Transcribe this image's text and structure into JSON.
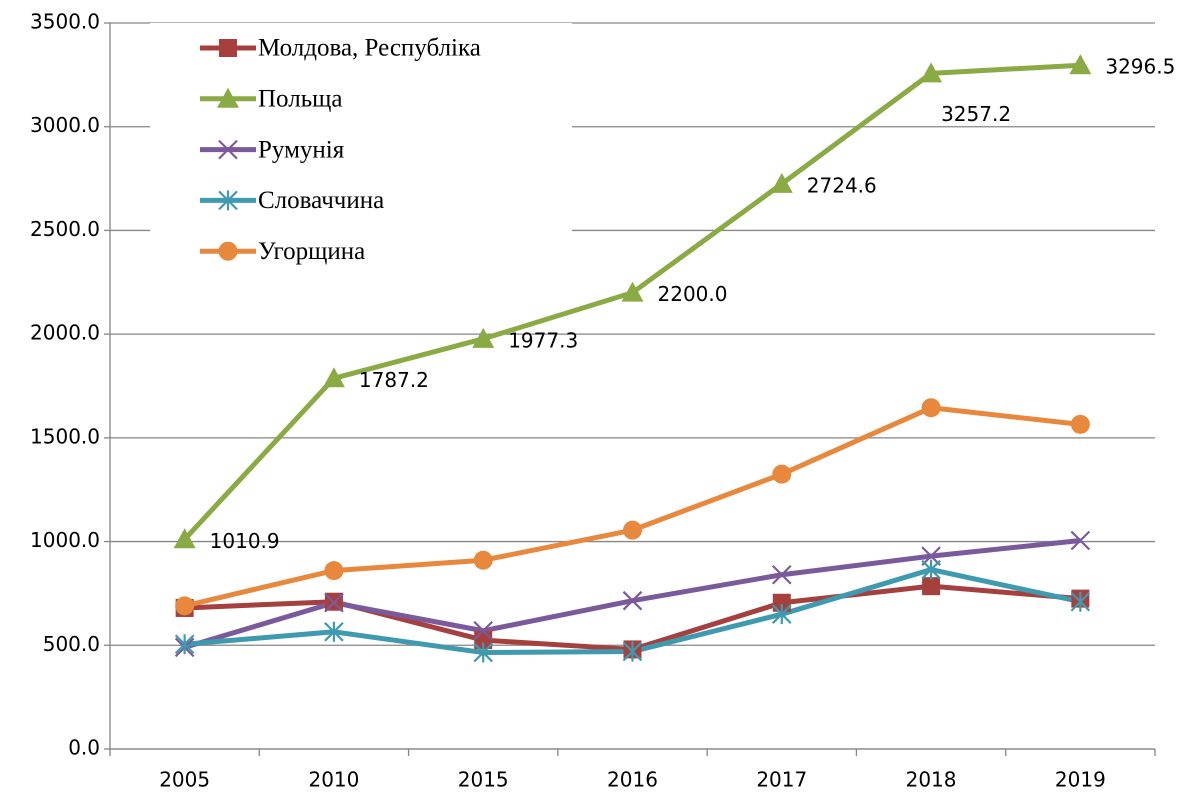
{
  "chart_data": {
    "type": "line",
    "categories": [
      "2005",
      "2010",
      "2015",
      "2016",
      "2017",
      "2018",
      "2019"
    ],
    "ylim": [
      0,
      3500
    ],
    "yticks": [
      {
        "value": 0,
        "label": "0.0"
      },
      {
        "value": 500,
        "label": "500.0"
      },
      {
        "value": 1000,
        "label": "1000.0"
      },
      {
        "value": 1500,
        "label": "1500.0"
      },
      {
        "value": 2000,
        "label": "2000.0"
      },
      {
        "value": 2500,
        "label": "2500.0"
      },
      {
        "value": 3000,
        "label": "3000.0"
      },
      {
        "value": 3500,
        "label": "3500.0"
      }
    ],
    "grid": true,
    "legend": "top-left",
    "series": [
      {
        "name": "Молдова, Республіка",
        "color": "#a5403e",
        "marker": "square",
        "values": [
          680,
          710,
          525,
          480,
          705,
          785,
          725
        ]
      },
      {
        "name": "Польща",
        "color": "#8aaa44",
        "marker": "triangle",
        "values": [
          1010.9,
          1787.2,
          1977.3,
          2200.0,
          2724.6,
          3257.2,
          3296.5
        ],
        "value_labels": [
          "1010.9",
          "1787.2",
          "1977.3",
          "2200.0",
          "2724.6",
          "3257.2",
          "3296.5"
        ]
      },
      {
        "name": "Румунія",
        "color": "#7b5a9c",
        "marker": "x",
        "values": [
          490,
          705,
          570,
          715,
          840,
          930,
          1005
        ]
      },
      {
        "name": "Словаччина",
        "color": "#3f9ab0",
        "marker": "star",
        "values": [
          505,
          565,
          465,
          470,
          650,
          865,
          710
        ]
      },
      {
        "name": "Угорщина",
        "color": "#e8883d",
        "marker": "circle",
        "values": [
          690,
          860,
          910,
          1055,
          1325,
          1645,
          1565
        ]
      }
    ]
  }
}
